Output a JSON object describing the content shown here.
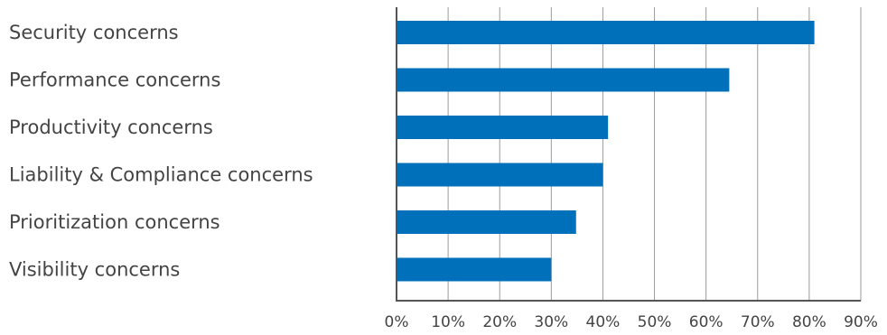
{
  "chart_data": {
    "type": "bar",
    "orientation": "horizontal",
    "categories": [
      "Security concerns",
      "Performance concerns",
      "Productivity concerns",
      "Liability & Compliance concerns",
      "Prioritization concerns",
      "Visibility concerns"
    ],
    "values": [
      81,
      64.5,
      41,
      40,
      34.8,
      30
    ],
    "value_unit": "percent",
    "title": "",
    "xlabel": "",
    "ylabel": "",
    "xlim": [
      0,
      90
    ],
    "x_ticks": [
      0,
      10,
      20,
      30,
      40,
      50,
      60,
      70,
      80,
      90
    ],
    "x_tick_labels": [
      "0%",
      "10%",
      "20%",
      "30%",
      "40%",
      "50%",
      "60%",
      "70%",
      "80%",
      "90%"
    ],
    "grid": "vertical",
    "legend": "none",
    "bar_color": "#0070BB",
    "grid_color": "#9a9a9a",
    "axis_color": "#555555",
    "label_color": "#444444"
  }
}
